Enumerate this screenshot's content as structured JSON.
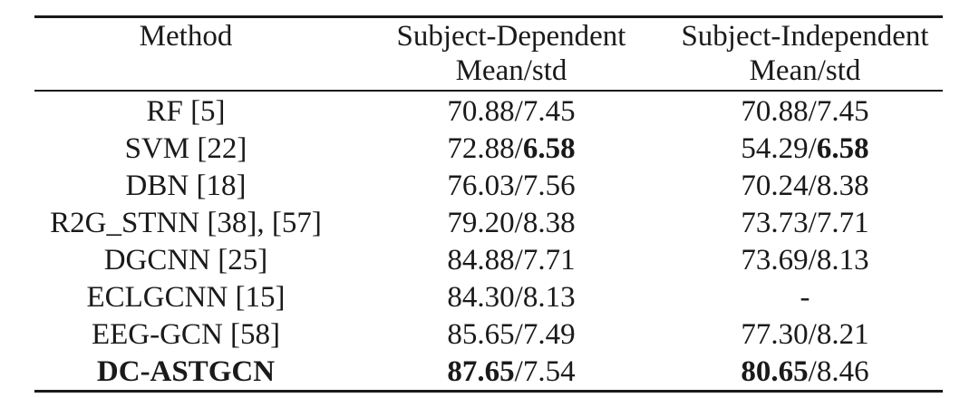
{
  "table": {
    "header": {
      "method": "Method",
      "dependent_line1": "Subject-Dependent",
      "dependent_line2": "Mean/std",
      "independent_line1": "Subject-Independent",
      "independent_line2": "Mean/std"
    },
    "rows": [
      {
        "method": "RF [5]",
        "dep_mean": "70.88",
        "dep_std": "7.45",
        "ind_mean": "70.88",
        "ind_std": "7.45"
      },
      {
        "method": "SVM [22]",
        "dep_mean": "72.88",
        "dep_std": "6.58",
        "ind_mean": "54.29",
        "ind_std": "6.58"
      },
      {
        "method": "DBN [18]",
        "dep_mean": "76.03",
        "dep_std": "7.56",
        "ind_mean": "70.24",
        "ind_std": "8.38"
      },
      {
        "method": "R2G_STNN [38], [57]",
        "dep_mean": "79.20",
        "dep_std": "8.38",
        "ind_mean": "73.73",
        "ind_std": "7.71"
      },
      {
        "method": "DGCNN [25]",
        "dep_mean": "84.88",
        "dep_std": "7.71",
        "ind_mean": "73.69",
        "ind_std": "8.13"
      },
      {
        "method": "ECLGCNN [15]",
        "dep_mean": "84.30",
        "dep_std": "8.13",
        "ind_missing": "-"
      },
      {
        "method": "EEG-GCN [58]",
        "dep_mean": "85.65",
        "dep_std": "7.49",
        "ind_mean": "77.30",
        "ind_std": "8.21"
      },
      {
        "method": "DC-ASTGCN",
        "dep_mean": "87.65",
        "dep_std": "7.54",
        "ind_mean": "80.65",
        "ind_std": "8.46"
      }
    ],
    "separator": "/"
  }
}
